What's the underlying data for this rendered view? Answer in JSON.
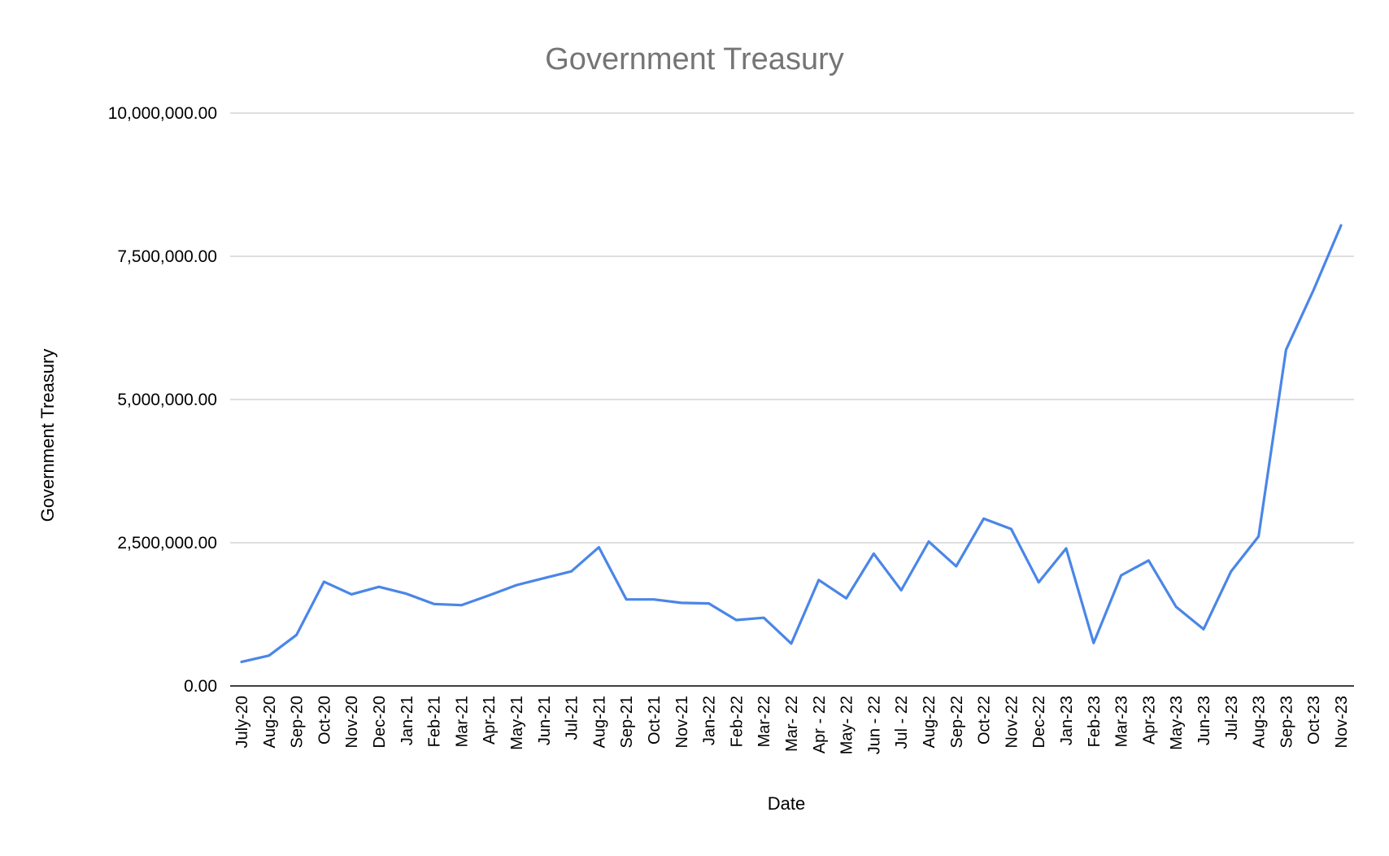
{
  "chart_data": {
    "type": "line",
    "title": "Government Treasury",
    "xlabel": "Date",
    "ylabel": "Government Treasury",
    "ylim": [
      0,
      10000000
    ],
    "yticks": [
      "0.00",
      "2,500,000.00",
      "5,000,000.00",
      "7,500,000.00",
      "10,000,000.00"
    ],
    "ytick_values": [
      0,
      2500000,
      5000000,
      7500000,
      10000000
    ],
    "grid": true,
    "legend": "none",
    "line_color": "#4a86e8",
    "categories": [
      "July-20",
      "Aug-20",
      "Sep-20",
      "Oct-20",
      "Nov-20",
      "Dec-20",
      "Jan-21",
      "Feb-21",
      "Mar-21",
      "Apr-21",
      "May-21",
      "Jun-21",
      "Jul-21",
      "Aug-21",
      "Sep-21",
      "Oct-21",
      "Nov-21",
      "Jan-22",
      "Feb-22",
      "Mar-22",
      "Mar- 22",
      "Apr - 22",
      "May- 22",
      "Jun - 22",
      "Jul - 22",
      "Aug-22",
      "Sep-22",
      "Oct-22",
      "Nov-22",
      "Dec-22",
      "Jan-23",
      "Feb-23",
      "Mar-23",
      "Apr-23",
      "May-23",
      "Jun-23",
      "Jul-23",
      "Aug-23",
      "Sep-23",
      "Oct-23",
      "Nov-23"
    ],
    "series": [
      {
        "values": [
          420000,
          530000,
          890000,
          1820000,
          1600000,
          1730000,
          1610000,
          1430000,
          1410000,
          1580000,
          1760000,
          1880000,
          2000000,
          2420000,
          1510000,
          1510000,
          1450000,
          1440000,
          1150000,
          1190000,
          740000,
          1850000,
          1530000,
          2310000,
          1670000,
          2520000,
          2090000,
          2920000,
          2740000,
          1810000,
          2400000,
          750000,
          1930000,
          2190000,
          1380000,
          990000,
          2000000,
          2610000,
          5870000,
          6910000,
          8040000
        ]
      }
    ]
  }
}
